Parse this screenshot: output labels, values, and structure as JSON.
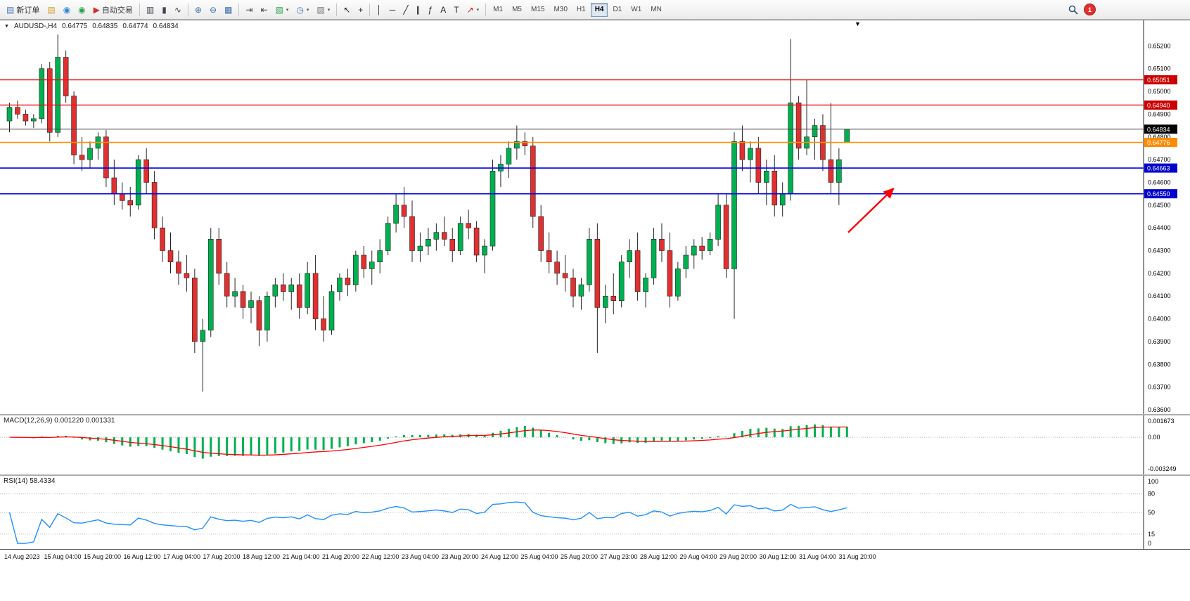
{
  "toolbar": {
    "buttons": [
      {
        "name": "new-order",
        "icon": "▤",
        "icon_name": "new-order-icon",
        "color": "#4a78c8",
        "label": "新订单"
      },
      {
        "name": "charts-history",
        "icon": "▤",
        "icon_name": "notebook-icon",
        "color": "#d2a024"
      },
      {
        "name": "market-watch",
        "icon": "◉",
        "icon_name": "blue-circle-icon",
        "color": "#2e86d4"
      },
      {
        "name": "community",
        "icon": "◉",
        "icon_name": "green-circle-icon",
        "color": "#2ea44f"
      },
      {
        "name": "autotrading",
        "icon": "▶",
        "icon_name": "autotrading-play-icon",
        "color": "#d03030",
        "label": "自动交易"
      },
      {
        "sep": true
      },
      {
        "name": "bar-chart",
        "icon": "▥",
        "icon_name": "bar-chart-icon",
        "color": "#445"
      },
      {
        "name": "candlestick-chart",
        "icon": "▮",
        "icon_name": "candlestick-icon",
        "color": "#445"
      },
      {
        "name": "line-chart",
        "icon": "∿",
        "icon_name": "line-chart-icon",
        "color": "#445"
      },
      {
        "sep": true
      },
      {
        "name": "zoom-in",
        "icon": "⊕",
        "icon_name": "zoom-in-icon",
        "color": "#3a6ea8"
      },
      {
        "name": "zoom-out",
        "icon": "⊖",
        "icon_name": "zoom-out-icon",
        "color": "#3a6ea8"
      },
      {
        "name": "tile-windows",
        "icon": "▦",
        "icon_name": "tile-windows-icon",
        "color": "#3a6ea8"
      },
      {
        "sep": true
      },
      {
        "name": "auto-scroll",
        "icon": "⇥",
        "icon_name": "auto-scroll-icon",
        "color": "#445"
      },
      {
        "name": "chart-shift",
        "icon": "⇤",
        "icon_name": "chart-shift-icon",
        "color": "#445"
      },
      {
        "name": "new-chart",
        "icon": "▧",
        "icon_name": "new-chart-icon",
        "color": "#2ea44f",
        "dropdown": true
      },
      {
        "name": "periods",
        "icon": "◷",
        "icon_name": "clock-icon",
        "color": "#3a6ea8",
        "dropdown": true
      },
      {
        "name": "templates",
        "icon": "▨",
        "icon_name": "template-icon",
        "color": "#777",
        "dropdown": true
      },
      {
        "sep": true
      },
      {
        "name": "cursor",
        "icon": "↖",
        "icon_name": "cursor-icon",
        "color": "#222"
      },
      {
        "name": "crosshair",
        "icon": "+",
        "icon_name": "crosshair-icon",
        "color": "#222"
      },
      {
        "sep": true
      },
      {
        "name": "vertical-line",
        "icon": "│",
        "icon_name": "vertical-line-icon",
        "color": "#222"
      },
      {
        "name": "horizontal-line",
        "icon": "─",
        "icon_name": "horizontal-line-icon",
        "color": "#222"
      },
      {
        "name": "trendline",
        "icon": "╱",
        "icon_name": "trendline-icon",
        "color": "#222"
      },
      {
        "name": "channel",
        "icon": "∥",
        "icon_name": "channel-icon",
        "color": "#222"
      },
      {
        "name": "fibonacci",
        "icon": "ƒ",
        "icon_name": "fibonacci-icon",
        "color": "#222"
      },
      {
        "name": "text",
        "icon": "A",
        "icon_name": "text-icon",
        "color": "#222"
      },
      {
        "name": "text-label",
        "icon": "T",
        "icon_name": "text-label-icon",
        "color": "#222"
      },
      {
        "name": "arrows",
        "icon": "↗",
        "icon_name": "arrow-tools-icon",
        "color": "#c22222",
        "dropdown": true
      },
      {
        "sep": true
      }
    ],
    "timeframes": [
      "M1",
      "M5",
      "M15",
      "M30",
      "H1",
      "H4",
      "D1",
      "W1",
      "MN"
    ],
    "active_timeframe": "H4",
    "notification_count": "1"
  },
  "chart": {
    "header": {
      "symbol": "AUDUSD-,H4",
      "open": "0.64775",
      "high": "0.64835",
      "low": "0.64774",
      "close": "0.64834"
    },
    "macd_label": "MACD(12,26,9) 0.001220 0.001331",
    "rsi_label": "RSI(14) 58.4334",
    "shift_marker_icon": "▼",
    "menu_icon": "▼"
  },
  "chart_data": {
    "type": "candlestick",
    "symbol": "AUDUSD",
    "timeframe": "H4",
    "last_quote": {
      "open": 0.64775,
      "high": 0.64835,
      "low": 0.64774,
      "close": 0.64834
    },
    "price_axis_labels": [
      "0.65200",
      "0.65100",
      "0.65000",
      "0.64900",
      "0.64800",
      "0.64700",
      "0.64600",
      "0.64500",
      "0.64400",
      "0.64300",
      "0.64200",
      "0.64100",
      "0.64000",
      "0.63900",
      "0.63800",
      "0.63700",
      "0.63600"
    ],
    "time_labels": [
      "14 Aug 2023",
      "15 Aug 04:00",
      "15 Aug 20:00",
      "16 Aug 12:00",
      "17 Aug 04:00",
      "17 Aug 20:00",
      "18 Aug 12:00",
      "21 Aug 04:00",
      "21 Aug 20:00",
      "22 Aug 12:00",
      "23 Aug 04:00",
      "23 Aug 20:00",
      "24 Aug 12:00",
      "25 Aug 04:00",
      "25 Aug 20:00",
      "27 Aug 23:00",
      "28 Aug 12:00",
      "29 Aug 04:00",
      "29 Aug 20:00",
      "30 Aug 12:00",
      "31 Aug 04:00",
      "31 Aug 20:00"
    ],
    "hlines": [
      {
        "price": 0.65051,
        "label": "0.65051",
        "color": "#ee1111",
        "label_bg": "#cc0000",
        "width": 1.4
      },
      {
        "price": 0.6494,
        "label": "0.64940",
        "color": "#ee1111",
        "label_bg": "#cc0000",
        "width": 1.4
      },
      {
        "price": 0.64776,
        "label": "0.64776",
        "color": "#ff8c00",
        "label_bg": "#ff8c00",
        "width": 1.6
      },
      {
        "price": 0.64663,
        "label": "0.64663",
        "color": "#0000ee",
        "label_bg": "#0000cc",
        "width": 1.6
      },
      {
        "price": 0.6455,
        "label": "0.64550",
        "color": "#0000ee",
        "label_bg": "#0000cc",
        "width": 1.6
      }
    ],
    "current_price_line": {
      "price": 0.64834,
      "label": "0.64834",
      "color": "#444444",
      "label_bg": "#000000",
      "width": 1
    },
    "arrow_annotation": {
      "color": "#ff0000",
      "points_to_price": 0.6455,
      "direction": "up-right"
    },
    "macd": {
      "title": "MACD(12,26,9)",
      "main": 0.00122,
      "signal": 0.001331,
      "axis_labels": [
        "0.001673",
        "0.00",
        "-0.003249"
      ],
      "scale_max": 0.001673,
      "scale_min": -0.003249
    },
    "rsi": {
      "title": "RSI(14)",
      "value": 58.4334,
      "axis_labels": [
        "100",
        "80",
        "50",
        "15",
        "0"
      ],
      "levels": [
        80,
        50,
        15
      ]
    },
    "colors": {
      "bull": "#00b050",
      "bear": "#e03030",
      "wick": "#222222",
      "macd_hist": "#00b050",
      "macd_signal": "#ff0000",
      "rsi_line": "#1e90ff"
    },
    "candles": [
      [
        0.6487,
        0.6495,
        0.6482,
        0.6493
      ],
      [
        0.6493,
        0.6496,
        0.6488,
        0.649
      ],
      [
        0.649,
        0.6492,
        0.6485,
        0.6487
      ],
      [
        0.6487,
        0.649,
        0.6484,
        0.6488
      ],
      [
        0.6488,
        0.6512,
        0.6486,
        0.651
      ],
      [
        0.651,
        0.6513,
        0.6478,
        0.6482
      ],
      [
        0.6482,
        0.6525,
        0.648,
        0.6515
      ],
      [
        0.6515,
        0.6518,
        0.6495,
        0.6498
      ],
      [
        0.6498,
        0.65,
        0.6468,
        0.6472
      ],
      [
        0.6472,
        0.648,
        0.6465,
        0.647
      ],
      [
        0.647,
        0.6478,
        0.6466,
        0.6475
      ],
      [
        0.6475,
        0.6482,
        0.647,
        0.648
      ],
      [
        0.648,
        0.6483,
        0.6458,
        0.6462
      ],
      [
        0.6462,
        0.647,
        0.645,
        0.6455
      ],
      [
        0.6455,
        0.646,
        0.6448,
        0.6452
      ],
      [
        0.6452,
        0.6458,
        0.6445,
        0.645
      ],
      [
        0.645,
        0.6472,
        0.6448,
        0.647
      ],
      [
        0.647,
        0.6475,
        0.6455,
        0.646
      ],
      [
        0.646,
        0.6465,
        0.6435,
        0.644
      ],
      [
        0.644,
        0.6445,
        0.6425,
        0.643
      ],
      [
        0.643,
        0.6438,
        0.642,
        0.6425
      ],
      [
        0.6425,
        0.643,
        0.6415,
        0.642
      ],
      [
        0.642,
        0.6428,
        0.6412,
        0.6418
      ],
      [
        0.6418,
        0.6422,
        0.6385,
        0.639
      ],
      [
        0.639,
        0.64,
        0.6368,
        0.6395
      ],
      [
        0.6395,
        0.644,
        0.6392,
        0.6435
      ],
      [
        0.6435,
        0.644,
        0.6415,
        0.642
      ],
      [
        0.642,
        0.6425,
        0.6405,
        0.641
      ],
      [
        0.641,
        0.6418,
        0.6405,
        0.6412
      ],
      [
        0.6412,
        0.6415,
        0.64,
        0.6405
      ],
      [
        0.6405,
        0.6412,
        0.6398,
        0.6408
      ],
      [
        0.6408,
        0.641,
        0.6388,
        0.6395
      ],
      [
        0.6395,
        0.6412,
        0.639,
        0.641
      ],
      [
        0.641,
        0.6418,
        0.6405,
        0.6415
      ],
      [
        0.6415,
        0.642,
        0.6408,
        0.6412
      ],
      [
        0.6412,
        0.6418,
        0.6404,
        0.6415
      ],
      [
        0.6415,
        0.642,
        0.64,
        0.6405
      ],
      [
        0.6405,
        0.6425,
        0.6402,
        0.642
      ],
      [
        0.642,
        0.6428,
        0.6395,
        0.64
      ],
      [
        0.64,
        0.641,
        0.639,
        0.6395
      ],
      [
        0.6395,
        0.6415,
        0.6393,
        0.6412
      ],
      [
        0.6412,
        0.642,
        0.6408,
        0.6418
      ],
      [
        0.6418,
        0.6422,
        0.641,
        0.6415
      ],
      [
        0.6415,
        0.643,
        0.6412,
        0.6428
      ],
      [
        0.6428,
        0.6432,
        0.6418,
        0.6422
      ],
      [
        0.6422,
        0.643,
        0.6415,
        0.6425
      ],
      [
        0.6425,
        0.6435,
        0.642,
        0.643
      ],
      [
        0.643,
        0.6445,
        0.6428,
        0.6442
      ],
      [
        0.6442,
        0.6455,
        0.6438,
        0.645
      ],
      [
        0.645,
        0.6458,
        0.644,
        0.6445
      ],
      [
        0.6445,
        0.6452,
        0.6425,
        0.643
      ],
      [
        0.643,
        0.6438,
        0.6425,
        0.6432
      ],
      [
        0.6432,
        0.644,
        0.6428,
        0.6435
      ],
      [
        0.6435,
        0.6442,
        0.643,
        0.6438
      ],
      [
        0.6438,
        0.6445,
        0.6432,
        0.6435
      ],
      [
        0.6435,
        0.644,
        0.6425,
        0.643
      ],
      [
        0.643,
        0.6445,
        0.6428,
        0.6442
      ],
      [
        0.6442,
        0.6448,
        0.6435,
        0.644
      ],
      [
        0.644,
        0.6443,
        0.6425,
        0.6428
      ],
      [
        0.6428,
        0.6435,
        0.642,
        0.6432
      ],
      [
        0.6432,
        0.647,
        0.643,
        0.6465
      ],
      [
        0.6465,
        0.6472,
        0.6458,
        0.6468
      ],
      [
        0.6468,
        0.6478,
        0.6462,
        0.6475
      ],
      [
        0.6475,
        0.6485,
        0.647,
        0.6478
      ],
      [
        0.6478,
        0.6482,
        0.6472,
        0.6476
      ],
      [
        0.6476,
        0.648,
        0.644,
        0.6445
      ],
      [
        0.6445,
        0.645,
        0.6425,
        0.643
      ],
      [
        0.643,
        0.6438,
        0.642,
        0.6425
      ],
      [
        0.6425,
        0.643,
        0.6415,
        0.642
      ],
      [
        0.642,
        0.6428,
        0.6412,
        0.6418
      ],
      [
        0.6418,
        0.6422,
        0.6405,
        0.641
      ],
      [
        0.641,
        0.6418,
        0.6404,
        0.6415
      ],
      [
        0.6415,
        0.644,
        0.6412,
        0.6435
      ],
      [
        0.6435,
        0.6442,
        0.6385,
        0.6405
      ],
      [
        0.6405,
        0.6415,
        0.6398,
        0.641
      ],
      [
        0.641,
        0.642,
        0.6402,
        0.6408
      ],
      [
        0.6408,
        0.6428,
        0.6405,
        0.6425
      ],
      [
        0.6425,
        0.6435,
        0.6418,
        0.643
      ],
      [
        0.643,
        0.6438,
        0.6408,
        0.6412
      ],
      [
        0.6412,
        0.642,
        0.6405,
        0.6418
      ],
      [
        0.6418,
        0.644,
        0.6415,
        0.6435
      ],
      [
        0.6435,
        0.6442,
        0.6425,
        0.643
      ],
      [
        0.643,
        0.6438,
        0.6405,
        0.641
      ],
      [
        0.641,
        0.6425,
        0.6408,
        0.6422
      ],
      [
        0.6422,
        0.6432,
        0.6418,
        0.6428
      ],
      [
        0.6428,
        0.6435,
        0.6422,
        0.6432
      ],
      [
        0.6432,
        0.6436,
        0.6426,
        0.643
      ],
      [
        0.643,
        0.6438,
        0.6428,
        0.6435
      ],
      [
        0.6435,
        0.6455,
        0.6432,
        0.645
      ],
      [
        0.645,
        0.6455,
        0.6418,
        0.6422
      ],
      [
        0.6422,
        0.6482,
        0.64,
        0.6478
      ],
      [
        0.6478,
        0.6485,
        0.6465,
        0.647
      ],
      [
        0.647,
        0.6478,
        0.646,
        0.6475
      ],
      [
        0.6475,
        0.648,
        0.6455,
        0.646
      ],
      [
        0.646,
        0.647,
        0.645,
        0.6465
      ],
      [
        0.6465,
        0.6472,
        0.6445,
        0.645
      ],
      [
        0.645,
        0.646,
        0.6445,
        0.6455
      ],
      [
        0.6455,
        0.6523,
        0.6452,
        0.6495
      ],
      [
        0.6495,
        0.6498,
        0.647,
        0.6475
      ],
      [
        0.6475,
        0.65051,
        0.6472,
        0.648
      ],
      [
        0.648,
        0.6488,
        0.647,
        0.6485
      ],
      [
        0.6485,
        0.649,
        0.6465,
        0.647
      ],
      [
        0.647,
        0.6495,
        0.6455,
        0.646
      ],
      [
        0.646,
        0.6475,
        0.645,
        0.647
      ],
      [
        0.64775,
        0.64835,
        0.64774,
        0.64834
      ]
    ]
  }
}
